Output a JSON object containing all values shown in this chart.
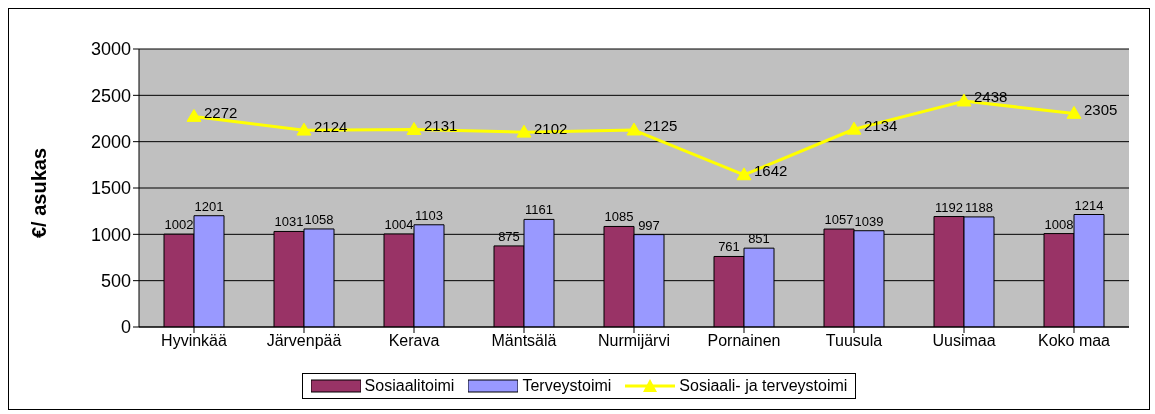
{
  "chart_data": {
    "type": "bar",
    "ylabel": "€/ asukas",
    "categories": [
      "Hyvinkää",
      "Järvenpää",
      "Kerava",
      "Mäntsälä",
      "Nurmijärvi",
      "Pornainen",
      "Tuusula",
      "Uusimaa",
      "Koko maa"
    ],
    "series": [
      {
        "name": "Sosiaalitoimi",
        "color": "#993366",
        "values": [
          1002,
          1031,
          1004,
          875,
          1085,
          761,
          1057,
          1192,
          1008
        ]
      },
      {
        "name": "Terveystoimi",
        "color": "#9999ff",
        "values": [
          1201,
          1058,
          1103,
          1161,
          997,
          851,
          1039,
          1188,
          1214
        ]
      },
      {
        "name": "Sosiaali- ja terveystoimi",
        "type": "line",
        "color": "#ffff00",
        "values": [
          2272,
          2124,
          2131,
          2102,
          2125,
          1642,
          2134,
          2438,
          2305
        ]
      }
    ],
    "ylim": [
      0,
      3000
    ],
    "yticks": [
      0,
      500,
      1000,
      1500,
      2000,
      2500,
      3000
    ],
    "grid": "y",
    "legend": "bottom",
    "marker": "triangle",
    "data_labels": true
  }
}
